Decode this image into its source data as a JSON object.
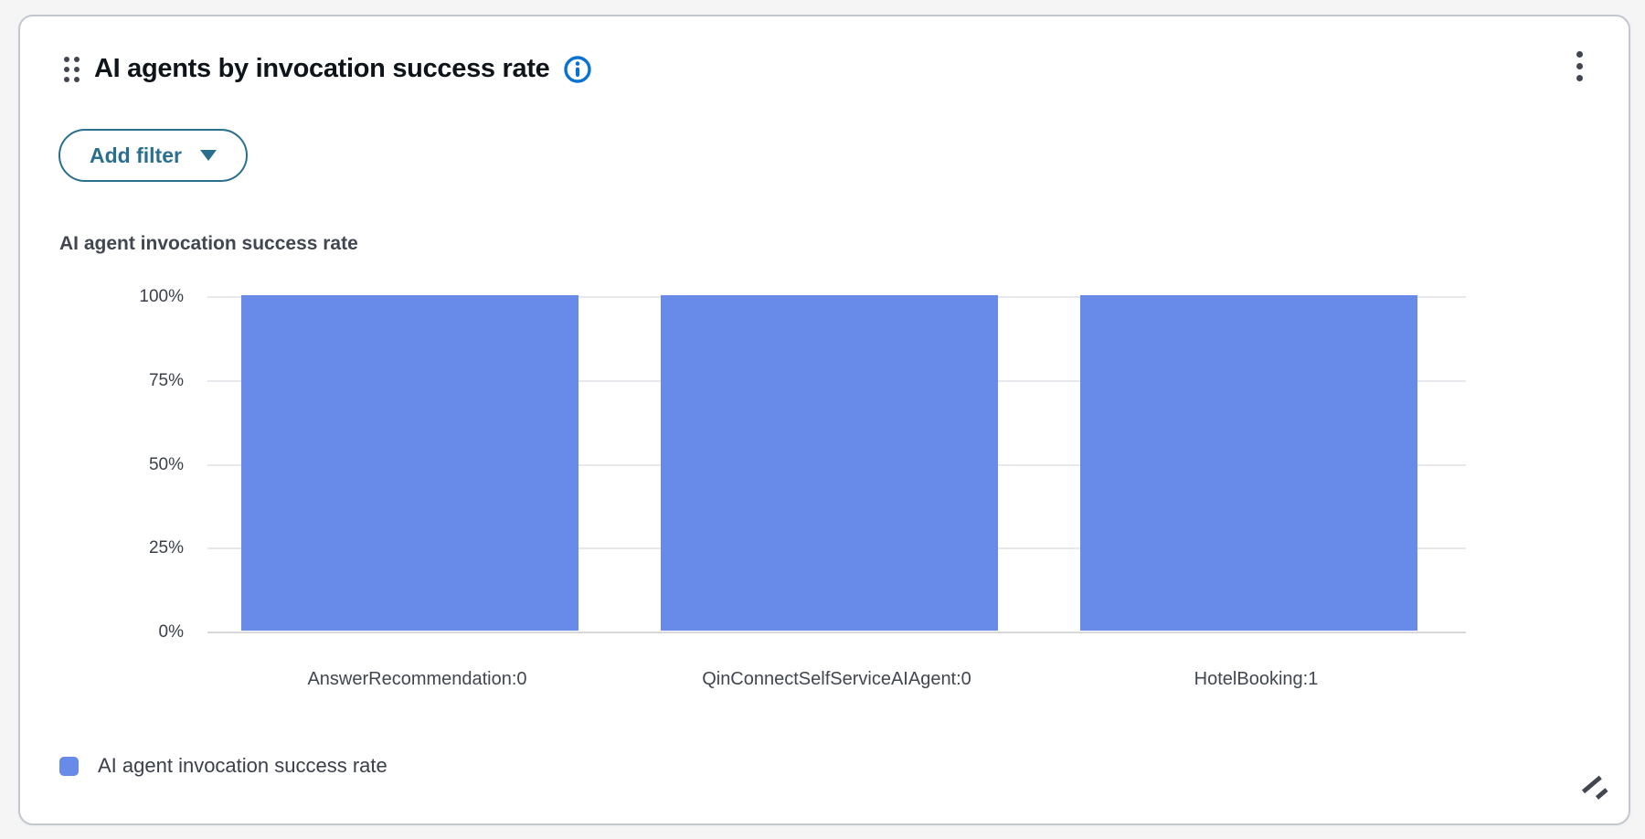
{
  "header": {
    "title": "AI agents by invocation success rate",
    "drag_handle_icon": "drag-dots",
    "info_icon": "info-circle",
    "menu_icon": "vertical-ellipsis"
  },
  "toolbar": {
    "add_filter_label": "Add filter",
    "caret_icon": "caret-down"
  },
  "chart_data": {
    "type": "bar",
    "title": "AI agent invocation success rate",
    "categories": [
      "AnswerRecommendation:0",
      "QinConnectSelfServiceAIAgent:0",
      "HotelBooking:1"
    ],
    "values": [
      100,
      100,
      100
    ],
    "value_unit": "%",
    "xlabel": "",
    "ylabel": "",
    "ylim": [
      0,
      100
    ],
    "yticks": [
      0,
      25,
      50,
      75,
      100
    ],
    "ytick_labels": [
      "0%",
      "25%",
      "50%",
      "75%",
      "100%"
    ],
    "grid": true,
    "bar_color": "#688ae8",
    "legend": {
      "position": "bottom",
      "entries": [
        {
          "label": "AI agent invocation success rate",
          "color": "#688ae8"
        }
      ]
    }
  },
  "colors": {
    "accent_teal": "#2a6f8e",
    "info_blue": "#0972d3",
    "bar_blue": "#688ae8",
    "text_dark": "#0f141a",
    "text_secondary": "#424650",
    "gridline": "#e7e8ec",
    "axis_line": "#d6d8dc",
    "card_border": "#c3c7cf",
    "page_background": "#f5f5f5"
  },
  "footer": {
    "resize_icon": "resize-handle"
  }
}
